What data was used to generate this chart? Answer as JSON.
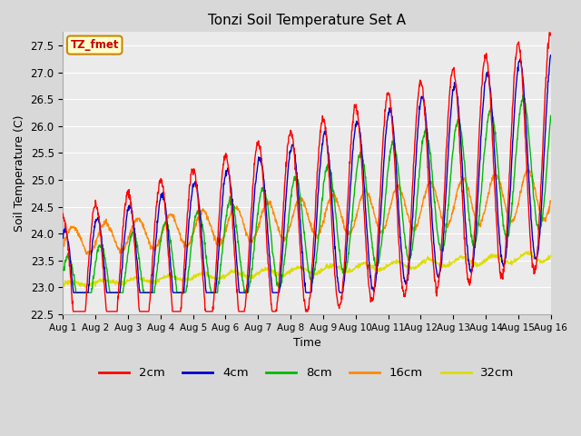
{
  "title": "Tonzi Soil Temperature Set A",
  "xlabel": "Time",
  "ylabel": "Soil Temperature (C)",
  "ylim": [
    22.5,
    27.75
  ],
  "xlim": [
    0,
    15
  ],
  "series_colors": {
    "2cm": "#ff0000",
    "4cm": "#0000cc",
    "8cm": "#00bb00",
    "16cm": "#ff8800",
    "32cm": "#dddd00"
  },
  "legend_label": "TZ_fmet",
  "legend_bg": "#ffffcc",
  "legend_border": "#cc8800",
  "plot_bg": "#ebebeb",
  "grid_color": "#ffffff",
  "n_days": 15,
  "points_per_day": 96,
  "seed": 7
}
